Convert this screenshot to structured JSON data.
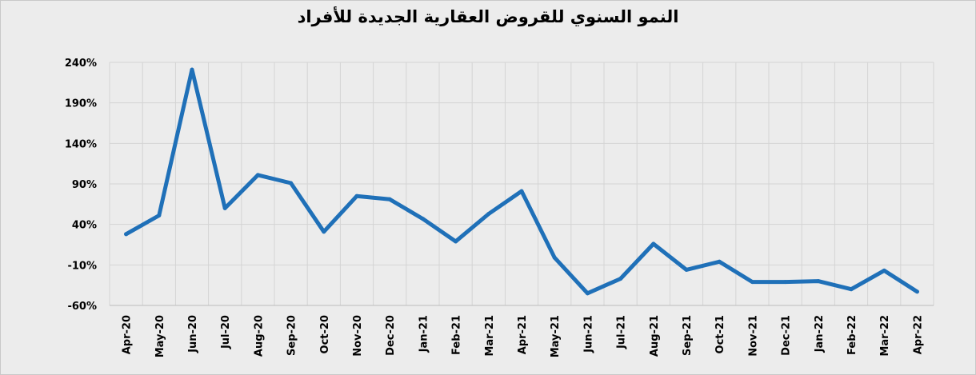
{
  "chart_data": {
    "type": "line",
    "title": "النمو السنوي للقروض العقارية الجديدة للأفراد",
    "xlabel": "",
    "ylabel": "",
    "x": [
      "Apr-20",
      "May-20",
      "Jun-20",
      "Jul-20",
      "Aug-20",
      "Sep-20",
      "Oct-20",
      "Nov-20",
      "Dec-20",
      "Jan-21",
      "Feb-21",
      "Mar-21",
      "Apr-21",
      "May-21",
      "Jun-21",
      "Jul-21",
      "Aug-21",
      "Sep-21",
      "Oct-21",
      "Nov-21",
      "Dec-21",
      "Jan-22",
      "Feb-22",
      "Mar-22",
      "Apr-22"
    ],
    "series": [
      {
        "values": [
          28,
          51,
          231,
          60,
          101,
          91,
          31,
          75,
          71,
          47,
          19,
          53,
          81,
          -1,
          -45,
          -27,
          16,
          -16,
          -6,
          -31,
          -31,
          -30,
          -40,
          -17,
          -43
        ],
        "color": "#1f70b8"
      }
    ],
    "ylim": [
      -60,
      240
    ],
    "yticks": [
      240,
      190,
      140,
      90,
      40,
      -10,
      -60
    ],
    "ytick_labels": [
      "240%",
      "190%",
      "140%",
      "90%",
      "40%",
      "-10%",
      "-60%"
    ],
    "grid": true,
    "legend": "none"
  }
}
